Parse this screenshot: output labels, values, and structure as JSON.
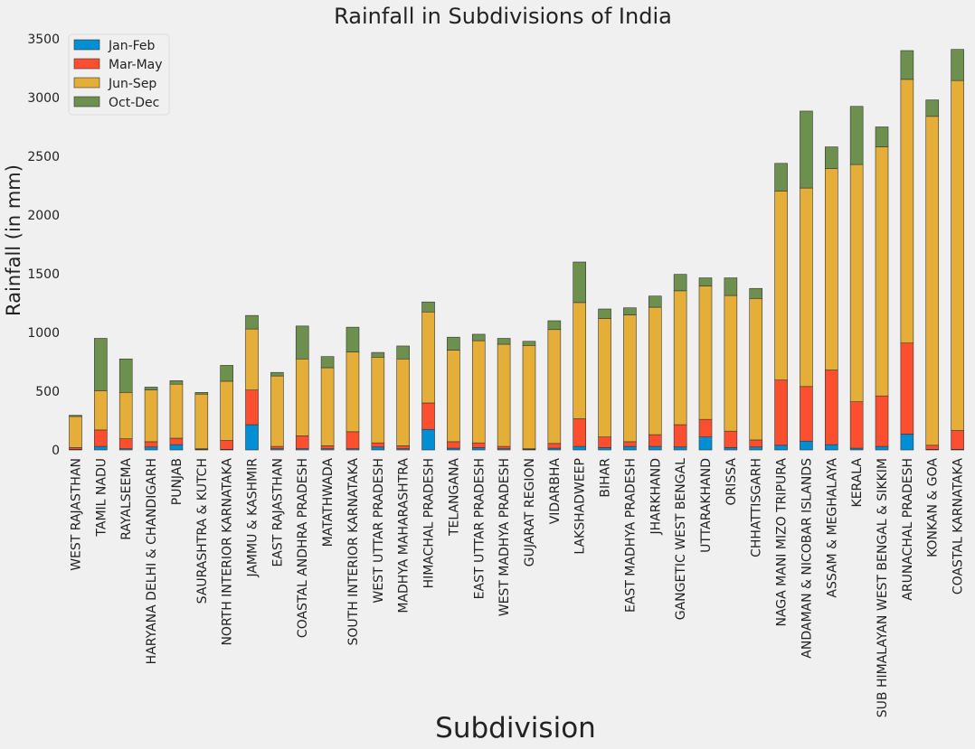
{
  "chart_data": {
    "type": "bar",
    "stacked": true,
    "title": "Rainfall in Subdivisions of India",
    "xlabel": "Subdivision",
    "ylabel": "Rainfall (in mm)",
    "ylim": [
      0,
      3500
    ],
    "yticks": [
      0,
      500,
      1000,
      1500,
      2000,
      2500,
      3000,
      3500
    ],
    "grid": false,
    "legend_position": "top-left",
    "categories": [
      "WEST RAJASTHAN",
      "TAMIL NADU",
      "RAYALSEEMA",
      "HARYANA DELHI & CHANDIGARH",
      "PUNJAB",
      "SAURASHTRA & KUTCH",
      "NORTH INTERIOR KARNATAKA",
      "JAMMU & KASHMIR",
      "EAST RAJASTHAN",
      "COASTAL ANDHRA PRADESH",
      "MATATHWADA",
      "SOUTH INTERIOR KARNATAKA",
      "WEST UTTAR PRADESH",
      "MADHYA MAHARASHTRA",
      "HIMACHAL PRADESH",
      "TELANGANA",
      "EAST UTTAR PRADESH",
      "WEST MADHYA PRADESH",
      "GUJARAT REGION",
      "VIDARBHA",
      "LAKSHADWEEP",
      "BIHAR",
      "EAST MADHYA PRADESH",
      "JHARKHAND",
      "GANGETIC WEST BENGAL",
      "UTTARAKHAND",
      "ORISSA",
      "CHHATTISGARH",
      "NAGA MANI MIZO TRIPURA",
      "ANDAMAN & NICOBAR ISLANDS",
      "ASSAM & MEGHALAYA",
      "KERALA",
      "SUB HIMALAYAN WEST BENGAL & SIKKIM",
      "ARUNACHAL PRADESH",
      "KONKAN & GOA",
      "COASTAL KARNATAKA"
    ],
    "series": [
      {
        "name": "Jan-Feb",
        "color": "#008fd5",
        "values": [
          5,
          30,
          10,
          25,
          45,
          5,
          5,
          215,
          10,
          10,
          10,
          10,
          25,
          10,
          175,
          15,
          20,
          10,
          5,
          15,
          30,
          20,
          30,
          30,
          25,
          110,
          20,
          25,
          40,
          75,
          45,
          15,
          30,
          135,
          5,
          5
        ]
      },
      {
        "name": "Mar-May",
        "color": "#fc4f30",
        "values": [
          15,
          140,
          85,
          45,
          55,
          5,
          75,
          295,
          20,
          110,
          25,
          145,
          35,
          25,
          225,
          55,
          40,
          20,
          5,
          40,
          235,
          90,
          40,
          100,
          190,
          150,
          140,
          60,
          555,
          465,
          635,
          395,
          430,
          775,
          35,
          160
        ]
      },
      {
        "name": "Jun-Sep",
        "color": "#e5ae38",
        "values": [
          265,
          335,
          395,
          440,
          460,
          465,
          505,
          520,
          600,
          655,
          665,
          680,
          730,
          740,
          775,
          780,
          870,
          870,
          880,
          970,
          990,
          1010,
          1080,
          1085,
          1140,
          1135,
          1155,
          1205,
          1610,
          1690,
          1715,
          2020,
          2120,
          2245,
          2800,
          2980
        ]
      },
      {
        "name": "Oct-Dec",
        "color": "#6d904f",
        "values": [
          10,
          445,
          285,
          25,
          30,
          15,
          135,
          115,
          30,
          280,
          95,
          210,
          40,
          110,
          85,
          110,
          55,
          50,
          35,
          75,
          345,
          80,
          60,
          95,
          140,
          70,
          150,
          85,
          235,
          655,
          185,
          495,
          170,
          245,
          140,
          265
        ]
      }
    ]
  }
}
